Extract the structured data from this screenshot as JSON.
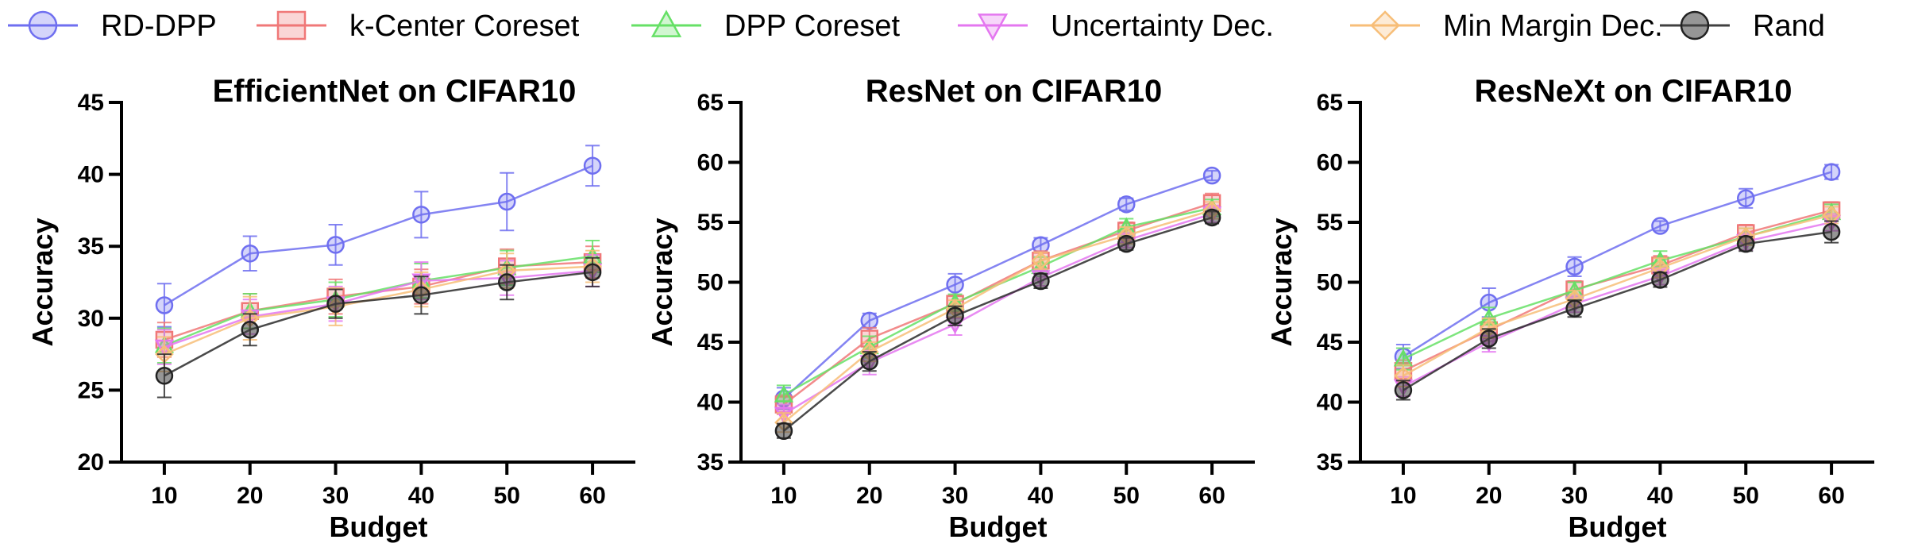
{
  "legend": {
    "placement": "top",
    "entries": [
      {
        "name": "RD-DPP",
        "color": "#6f6ff0",
        "marker": "circle"
      },
      {
        "name": "k-Center Coreset",
        "color": "#f07878",
        "marker": "square"
      },
      {
        "name": "DPP Coreset",
        "color": "#66e066",
        "marker": "triangle-up"
      },
      {
        "name": "Uncertainty Dec.",
        "color": "#e477f0",
        "marker": "triangle-down"
      },
      {
        "name": "Min Margin Dec.",
        "color": "#f7be78",
        "marker": "diamond"
      },
      {
        "name": "Rand",
        "color": "#404040",
        "marker": "circle-dark"
      }
    ]
  },
  "chart_data": [
    {
      "type": "line",
      "title": "EfficientNet on CIFAR10",
      "xlabel": "Budget",
      "ylabel": "Accuracy",
      "x": [
        10,
        20,
        30,
        40,
        50,
        60
      ],
      "xticks": [
        "10",
        "20",
        "30",
        "40",
        "50",
        "60"
      ],
      "ylim": [
        20,
        45
      ],
      "yticks": [
        "20",
        "25",
        "30",
        "35",
        "40",
        "45"
      ],
      "grid": false,
      "series": [
        {
          "name": "RD-DPP",
          "values": [
            30.9,
            34.5,
            35.1,
            37.2,
            38.1,
            40.6
          ],
          "errors": [
            1.5,
            1.2,
            1.4,
            1.6,
            2.0,
            1.4
          ]
        },
        {
          "name": "k-Center Coreset",
          "values": [
            28.5,
            30.5,
            31.5,
            32.2,
            33.6,
            33.9
          ],
          "errors": [
            1.2,
            1.2,
            1.2,
            1.2,
            1.2,
            1.1
          ]
        },
        {
          "name": "DPP Coreset",
          "values": [
            28.1,
            30.5,
            31.3,
            32.6,
            33.5,
            34.3
          ],
          "errors": [
            1.2,
            1.2,
            1.2,
            1.2,
            1.2,
            1.1
          ]
        },
        {
          "name": "Uncertainty Dec.",
          "values": [
            28.0,
            30.1,
            31.0,
            32.6,
            32.8,
            33.3
          ],
          "errors": [
            1.2,
            1.2,
            1.2,
            1.3,
            1.2,
            1.1
          ]
        },
        {
          "name": "Min Margin Dec.",
          "values": [
            27.5,
            30.0,
            30.8,
            32.0,
            33.3,
            33.6
          ],
          "errors": [
            1.2,
            1.5,
            1.3,
            1.2,
            1.2,
            1.1
          ]
        },
        {
          "name": "Rand",
          "values": [
            26.0,
            29.2,
            31.0,
            31.6,
            32.5,
            33.2
          ],
          "errors": [
            1.5,
            1.1,
            1.0,
            1.3,
            1.2,
            1.0
          ]
        }
      ]
    },
    {
      "type": "line",
      "title": "ResNet on CIFAR10",
      "xlabel": "Budget",
      "ylabel": "Accuracy",
      "x": [
        10,
        20,
        30,
        40,
        50,
        60
      ],
      "xticks": [
        "10",
        "20",
        "30",
        "40",
        "50",
        "60"
      ],
      "ylim": [
        35,
        65
      ],
      "yticks": [
        "35",
        "40",
        "45",
        "50",
        "55",
        "60",
        "65"
      ],
      "grid": false,
      "series": [
        {
          "name": "RD-DPP",
          "values": [
            40.3,
            46.8,
            49.8,
            53.1,
            56.5,
            58.9
          ],
          "errors": [
            0.9,
            0.6,
            0.9,
            0.6,
            0.5,
            0.4
          ]
        },
        {
          "name": "k-Center Coreset",
          "values": [
            39.8,
            45.3,
            48.2,
            51.8,
            54.3,
            56.6
          ],
          "errors": [
            0.8,
            0.9,
            0.7,
            0.8,
            0.7,
            0.8
          ]
        },
        {
          "name": "DPP Coreset",
          "values": [
            40.6,
            44.6,
            48.3,
            51.3,
            54.6,
            56.2
          ],
          "errors": [
            0.8,
            0.9,
            0.7,
            0.8,
            0.7,
            0.7
          ]
        },
        {
          "name": "Uncertainty Dec.",
          "values": [
            39.0,
            43.3,
            46.5,
            50.4,
            53.5,
            55.7
          ],
          "errors": [
            0.8,
            1.0,
            0.9,
            0.7,
            0.6,
            0.7
          ]
        },
        {
          "name": "Min Margin Dec.",
          "values": [
            38.3,
            44.2,
            47.8,
            51.8,
            53.9,
            56.0
          ],
          "errors": [
            0.8,
            0.8,
            0.7,
            0.7,
            0.7,
            0.7
          ]
        },
        {
          "name": "Rand",
          "values": [
            37.6,
            43.4,
            47.2,
            50.1,
            53.2,
            55.4
          ],
          "errors": [
            0.6,
            0.8,
            0.8,
            0.6,
            0.5,
            0.5
          ]
        }
      ]
    },
    {
      "type": "line",
      "title": "ResNeXt on CIFAR10",
      "xlabel": "Budget",
      "ylabel": "Accuracy",
      "x": [
        10,
        20,
        30,
        40,
        50,
        60
      ],
      "xticks": [
        "10",
        "20",
        "30",
        "40",
        "50",
        "60"
      ],
      "ylim": [
        35,
        65
      ],
      "yticks": [
        "35",
        "40",
        "45",
        "50",
        "55",
        "60",
        "65"
      ],
      "grid": false,
      "series": [
        {
          "name": "RD-DPP",
          "values": [
            43.8,
            48.3,
            51.3,
            54.7,
            57.0,
            59.2
          ],
          "errors": [
            1.0,
            1.2,
            0.8,
            0.4,
            0.8,
            0.6
          ]
        },
        {
          "name": "k-Center Coreset",
          "values": [
            42.6,
            46.0,
            49.4,
            51.4,
            54.1,
            56.0
          ],
          "errors": [
            0.9,
            0.9,
            0.7,
            0.8,
            0.7,
            0.7
          ]
        },
        {
          "name": "DPP Coreset",
          "values": [
            43.6,
            47.0,
            49.3,
            51.8,
            53.8,
            55.8
          ],
          "errors": [
            0.9,
            0.9,
            0.7,
            0.8,
            0.7,
            0.7
          ]
        },
        {
          "name": "Uncertainty Dec.",
          "values": [
            41.3,
            45.0,
            48.2,
            50.5,
            53.4,
            55.0
          ],
          "errors": [
            0.8,
            0.8,
            0.7,
            0.7,
            0.7,
            0.7
          ]
        },
        {
          "name": "Min Margin Dec.",
          "values": [
            42.2,
            46.2,
            48.6,
            51.2,
            53.8,
            55.6
          ],
          "errors": [
            0.9,
            0.8,
            0.7,
            0.8,
            0.7,
            0.7
          ]
        },
        {
          "name": "Rand",
          "values": [
            41.0,
            45.3,
            47.8,
            50.2,
            53.2,
            54.2
          ],
          "errors": [
            0.8,
            0.8,
            0.7,
            0.6,
            0.6,
            0.9
          ]
        }
      ]
    }
  ]
}
